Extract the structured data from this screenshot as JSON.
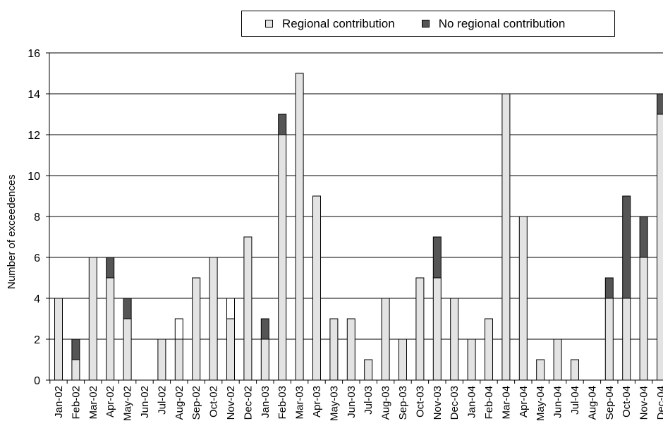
{
  "legend": {
    "items": [
      {
        "label": "Regional contribution",
        "color": "#e3e3e3"
      },
      {
        "label": "No regional contribution",
        "color": "#555555"
      }
    ]
  },
  "chart_data": {
    "type": "bar",
    "stacked": true,
    "title": "",
    "xlabel": "",
    "ylabel": "Number of exceedences",
    "ylim": [
      0,
      16
    ],
    "yticks": [
      0,
      2,
      4,
      6,
      8,
      10,
      12,
      14,
      16
    ],
    "grid": "horizontal",
    "legend_position": "top",
    "categories": [
      "Jan-02",
      "Feb-02",
      "Mar-02",
      "Apr-02",
      "May-02",
      "Jun-02",
      "Jul-02",
      "Aug-02",
      "Sep-02",
      "Oct-02",
      "Nov-02",
      "Dec-02",
      "Jan-03",
      "Feb-03",
      "Mar-03",
      "Apr-03",
      "May-03",
      "Jun-03",
      "Jul-03",
      "Aug-03",
      "Sep-03",
      "Oct-03",
      "Nov-03",
      "Dec-03",
      "Jan-04",
      "Feb-04",
      "Mar-04",
      "Apr-04",
      "May-04",
      "Jun-04",
      "Jul-04",
      "Aug-04",
      "Sep-04",
      "Oct-04",
      "Nov-04",
      "Dec-04"
    ],
    "series": [
      {
        "name": "Regional contribution",
        "color": "#e3e3e3",
        "values": [
          4,
          1,
          6,
          5,
          3,
          0,
          2,
          2,
          5,
          6,
          3,
          7,
          2,
          12,
          15,
          9,
          3,
          3,
          1,
          4,
          2,
          5,
          5,
          4,
          2,
          3,
          14,
          8,
          1,
          2,
          1,
          0,
          4,
          4,
          6,
          13
        ]
      },
      {
        "name": "No regional contribution",
        "color": "#555555",
        "values": [
          0,
          1,
          0,
          1,
          1,
          0,
          0,
          0,
          0,
          0,
          0,
          0,
          1,
          1,
          0,
          0,
          0,
          0,
          0,
          0,
          0,
          0,
          2,
          0,
          0,
          0,
          0,
          0,
          0,
          0,
          0,
          0,
          1,
          5,
          2,
          1
        ]
      },
      {
        "name": "",
        "color": "#ffffff",
        "values": [
          0,
          0,
          0,
          0,
          0,
          0,
          0,
          1,
          0,
          0,
          1,
          0,
          0,
          0,
          0,
          0,
          0,
          0,
          0,
          0,
          0,
          0,
          0,
          0,
          0,
          0,
          0,
          0,
          0,
          0,
          0,
          0,
          0,
          0,
          0,
          0
        ]
      }
    ]
  }
}
